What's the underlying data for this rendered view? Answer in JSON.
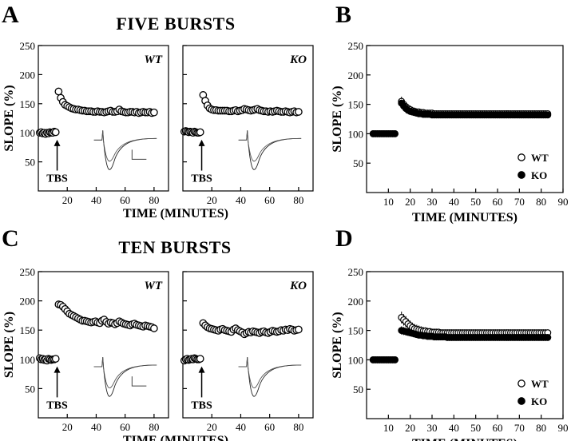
{
  "headings": {
    "five": "FIVE BURSTS",
    "ten": "TEN BURSTS"
  },
  "panel_letters": {
    "A": "A",
    "B": "B",
    "C": "C",
    "D": "D"
  },
  "labels": {
    "ylabel": "SLOPE (%)",
    "xlabel": "TIME (MINUTES)",
    "tbs": "TBS",
    "wt": "WT",
    "ko": "KO"
  },
  "colors": {
    "ink": "#000000",
    "background": "#ffffff",
    "marker_fill": "#ffffff"
  },
  "chart_data": [
    {
      "id": "A-WT",
      "type": "scatter",
      "genotype": "WT",
      "xlim": [
        0,
        90
      ],
      "ylim": [
        0,
        250
      ],
      "xticks": [
        20,
        40,
        60,
        80
      ],
      "yticks": [
        50,
        100,
        150,
        200,
        250
      ],
      "annotation": "TBS",
      "baseline": {
        "x_start": 1,
        "x_end": 12,
        "step": 1,
        "y": [
          100,
          101,
          99,
          100,
          98,
          100,
          99,
          101,
          100,
          100,
          102,
          101
        ]
      },
      "post": {
        "x_start": 14,
        "x_end": 80,
        "step": 1.5,
        "y": [
          171,
          160,
          153,
          148,
          146,
          144,
          142,
          141,
          140,
          140,
          139,
          138,
          138,
          137,
          137,
          137,
          136,
          136,
          137,
          136,
          136,
          135,
          136,
          137,
          138,
          136,
          136,
          137,
          140,
          137,
          136,
          135,
          135,
          136,
          136,
          135,
          136,
          134,
          135,
          136,
          135,
          135,
          136,
          134,
          135
        ]
      }
    },
    {
      "id": "A-KO",
      "type": "scatter",
      "genotype": "KO",
      "xlim": [
        0,
        90
      ],
      "ylim": [
        0,
        250
      ],
      "xticks": [
        20,
        40,
        60,
        80
      ],
      "yticks": [
        50,
        100,
        150,
        200,
        250
      ],
      "annotation": "TBS",
      "baseline": {
        "x_start": 1,
        "x_end": 12,
        "step": 1,
        "y": [
          102,
          103,
          102,
          101,
          102,
          101,
          100,
          102,
          101,
          100,
          100,
          101
        ]
      },
      "post": {
        "x_start": 14,
        "x_end": 80,
        "step": 1.5,
        "y": [
          165,
          155,
          147,
          142,
          140,
          139,
          139,
          138,
          138,
          138,
          138,
          138,
          137,
          137,
          138,
          139,
          137,
          138,
          139,
          141,
          140,
          139,
          138,
          139,
          140,
          141,
          139,
          138,
          137,
          137,
          136,
          137,
          136,
          137,
          138,
          137,
          136,
          136,
          137,
          136,
          135,
          136,
          137,
          135,
          136
        ]
      }
    },
    {
      "id": "B",
      "type": "scatter",
      "xlim": [
        0,
        90
      ],
      "ylim": [
        0,
        250
      ],
      "xticks": [
        10,
        20,
        30,
        40,
        50,
        60,
        70,
        80,
        90
      ],
      "yticks": [
        50,
        100,
        150,
        200,
        250
      ],
      "legend": "bottom-right",
      "series": [
        {
          "name": "WT",
          "marker": "open-circle",
          "baseline": {
            "x_start": 3,
            "x_end": 13,
            "step": 1,
            "y": [
              100,
              100,
              100,
              100,
              100,
              100,
              100,
              100,
              100,
              100,
              100
            ]
          },
          "post": {
            "x_start": 16,
            "x_end": 83,
            "step": 1,
            "y": [
              155,
              150,
              146,
              143,
              141,
              139,
              138,
              137,
              137,
              136,
              136,
              135,
              135,
              135,
              135,
              134,
              134,
              134,
              134,
              134,
              134,
              134,
              134,
              134,
              134,
              134,
              134,
              134,
              134,
              134,
              134,
              134,
              134,
              134,
              134,
              134,
              134,
              134,
              134,
              134,
              134,
              134,
              134,
              134,
              134,
              134,
              134,
              134,
              134,
              134,
              134,
              134,
              134,
              134,
              134,
              134,
              134,
              134,
              134,
              134,
              134,
              134,
              134,
              134,
              134,
              134,
              134,
              134
            ]
          },
          "error": 8
        },
        {
          "name": "KO",
          "marker": "filled-circle",
          "baseline": {
            "x_start": 3,
            "x_end": 13,
            "step": 1,
            "y": [
              100,
              100,
              100,
              100,
              100,
              100,
              100,
              100,
              100,
              100,
              100
            ]
          },
          "post": {
            "x_start": 16,
            "x_end": 83,
            "step": 1,
            "y": [
              152,
              147,
              143,
              140,
              138,
              137,
              136,
              135,
              134,
              134,
              133,
              133,
              133,
              133,
              132,
              132,
              132,
              132,
              132,
              132,
              132,
              132,
              132,
              132,
              132,
              132,
              132,
              132,
              132,
              132,
              132,
              132,
              132,
              132,
              132,
              132,
              132,
              132,
              132,
              132,
              132,
              132,
              132,
              132,
              132,
              132,
              132,
              132,
              132,
              132,
              132,
              132,
              132,
              132,
              132,
              132,
              132,
              132,
              132,
              132,
              132,
              132,
              132,
              132,
              132,
              132,
              132,
              132
            ]
          },
          "error": 6
        }
      ]
    },
    {
      "id": "C-WT",
      "type": "scatter",
      "genotype": "WT",
      "xlim": [
        0,
        90
      ],
      "ylim": [
        0,
        250
      ],
      "xticks": [
        20,
        40,
        60,
        80
      ],
      "yticks": [
        50,
        100,
        150,
        200,
        250
      ],
      "annotation": "TBS",
      "baseline": {
        "x_start": 1,
        "x_end": 12,
        "step": 1,
        "y": [
          102,
          100,
          101,
          99,
          100,
          98,
          101,
          100,
          99,
          100,
          100,
          101
        ]
      },
      "post": {
        "x_start": 14,
        "x_end": 80,
        "step": 1.5,
        "y": [
          194,
          193,
          190,
          186,
          182,
          178,
          176,
          174,
          172,
          170,
          168,
          166,
          166,
          165,
          164,
          163,
          164,
          165,
          163,
          162,
          166,
          168,
          164,
          161,
          163,
          162,
          160,
          162,
          165,
          163,
          161,
          160,
          159,
          158,
          160,
          161,
          159,
          158,
          157,
          156,
          158,
          157,
          156,
          155,
          153
        ]
      }
    },
    {
      "id": "C-KO",
      "type": "scatter",
      "genotype": "KO",
      "xlim": [
        0,
        90
      ],
      "ylim": [
        0,
        250
      ],
      "xticks": [
        20,
        40,
        60,
        80
      ],
      "yticks": [
        50,
        100,
        150,
        200,
        250
      ],
      "annotation": "TBS",
      "baseline": {
        "x_start": 1,
        "x_end": 12,
        "step": 1,
        "y": [
          98,
          100,
          101,
          99,
          100,
          101,
          100,
          102,
          101,
          100,
          100,
          101
        ]
      },
      "post": {
        "x_start": 14,
        "x_end": 80,
        "step": 1.5,
        "y": [
          162,
          158,
          155,
          153,
          152,
          151,
          150,
          149,
          151,
          152,
          150,
          149,
          148,
          147,
          151,
          153,
          150,
          148,
          146,
          143,
          145,
          147,
          146,
          148,
          147,
          146,
          145,
          147,
          148,
          146,
          145,
          147,
          149,
          148,
          147,
          148,
          150,
          149,
          151,
          150,
          152,
          151,
          149,
          150,
          151
        ]
      }
    },
    {
      "id": "D",
      "type": "scatter",
      "xlim": [
        0,
        90
      ],
      "ylim": [
        0,
        250
      ],
      "xticks": [
        10,
        20,
        30,
        40,
        50,
        60,
        70,
        80,
        90
      ],
      "yticks": [
        50,
        100,
        150,
        200,
        250
      ],
      "legend": "bottom-right",
      "series": [
        {
          "name": "WT",
          "marker": "open-circle",
          "baseline": {
            "x_start": 3,
            "x_end": 13,
            "step": 1,
            "y": [
              100,
              100,
              100,
              100,
              100,
              100,
              100,
              100,
              100,
              100,
              100
            ]
          },
          "post": {
            "x_start": 16,
            "x_end": 83,
            "step": 1,
            "y": [
              172,
              168,
              165,
              161,
              158,
              155,
              153,
              152,
              151,
              150,
              149,
              149,
              148,
              148,
              147,
              147,
              147,
              147,
              146,
              146,
              146,
              146,
              146,
              146,
              146,
              146,
              146,
              146,
              146,
              146,
              146,
              146,
              146,
              146,
              146,
              146,
              146,
              146,
              146,
              146,
              146,
              146,
              146,
              146,
              146,
              146,
              146,
              146,
              146,
              146,
              146,
              146,
              146,
              146,
              146,
              146,
              146,
              146,
              146,
              146,
              146,
              146,
              146,
              146,
              146,
              146,
              146,
              146
            ]
          },
          "error": 10
        },
        {
          "name": "KO",
          "marker": "filled-circle",
          "baseline": {
            "x_start": 3,
            "x_end": 13,
            "step": 1,
            "y": [
              100,
              100,
              100,
              100,
              100,
              100,
              100,
              100,
              100,
              100,
              100
            ]
          },
          "post": {
            "x_start": 16,
            "x_end": 83,
            "step": 1,
            "y": [
              150,
              149,
              148,
              147,
              146,
              145,
              144,
              143,
              142,
              142,
              141,
              141,
              140,
              140,
              140,
              139,
              139,
              139,
              139,
              139,
              139,
              138,
              138,
              138,
              138,
              138,
              138,
              138,
              138,
              138,
              138,
              138,
              138,
              138,
              138,
              138,
              138,
              138,
              138,
              138,
              138,
              138,
              138,
              138,
              138,
              138,
              138,
              138,
              138,
              138,
              138,
              138,
              138,
              138,
              138,
              138,
              138,
              138,
              138,
              138,
              138,
              138,
              138,
              138,
              138,
              138,
              138,
              138
            ]
          },
          "error": 7
        }
      ]
    }
  ]
}
